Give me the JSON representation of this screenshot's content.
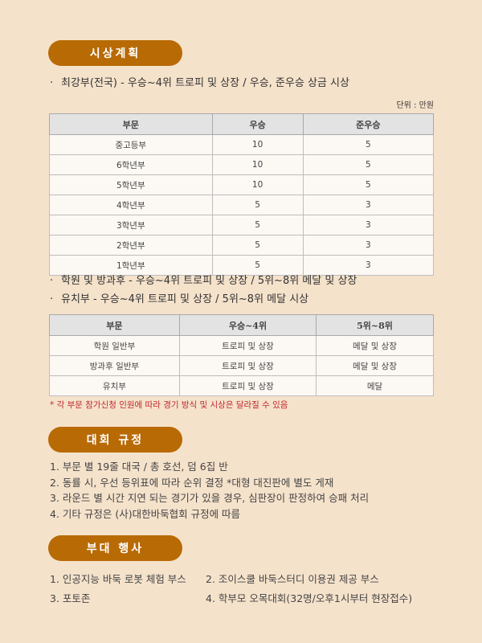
{
  "section1": {
    "title": "시상계획",
    "bullet1": "최강부(전국)  -  우승~4위 트로피 및 상장 / 우승, 준우승 상금 시상",
    "unit": "단위 : 만원",
    "table1": {
      "headers": [
        "부문",
        "우승",
        "준우승"
      ],
      "rows": [
        [
          "중고등부",
          "10",
          "5"
        ],
        [
          "6학년부",
          "10",
          "5"
        ],
        [
          "5학년부",
          "10",
          "5"
        ],
        [
          "4학년부",
          "5",
          "3"
        ],
        [
          "3학년부",
          "5",
          "3"
        ],
        [
          "2학년부",
          "5",
          "3"
        ],
        [
          "1학년부",
          "5",
          "3"
        ]
      ]
    },
    "bullet2": "학원 및 방과후  -  우승~4위 트로피 및 상장 / 5위~8위 메달 및 상장",
    "bullet3": "유치부  -  우승~4위 트로피 및 상장 / 5위~8위 메달 시상",
    "table2": {
      "headers": [
        "부문",
        "우승~4위",
        "5위~8위"
      ],
      "rows": [
        [
          "학원 일반부",
          "트로피 및 상장",
          "메달 및 상장"
        ],
        [
          "방과후 일반부",
          "트로피 및 상장",
          "메달 및 상장"
        ],
        [
          "유치부",
          "트로피 및 상장",
          "메달"
        ]
      ]
    },
    "note": "* 각 부문 참가신청 인원에 따라 경기 방식 및 시상은 달라질 수 있음"
  },
  "section2": {
    "title": "대회 규정",
    "items": [
      "1. 부문 별 19줄 대국 / 총 호선, 덤 6집 반",
      "2. 동률 시, 우선 등위표에 따라 순위 결정 *대형 대진판에 별도 게재",
      "3. 라운드 별 시간 지연 되는 경기가 있을 경우, 심판장이 판정하여 승패 처리",
      "4. 기타 규정은 (사)대한바둑협회 규정에 따름"
    ]
  },
  "section3": {
    "title": "부대 행사",
    "items": [
      "1. 인공지능 바둑 로봇 체험 부스",
      "2. 조이스쿨 바둑스터디 이용권 제공 부스",
      "3. 포토존",
      "4. 학부모 오목대회(32명/오후1시부터 현장접수)"
    ]
  }
}
